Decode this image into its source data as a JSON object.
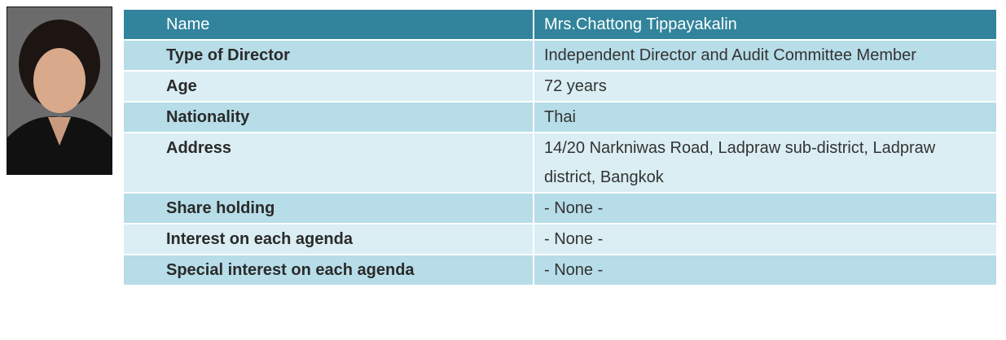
{
  "table": {
    "header": [
      "Name",
      "Mrs.Chattong Tippayakalin"
    ],
    "rows": [
      [
        "Type of Director",
        "Independent Director and Audit Committee Member"
      ],
      [
        "Age",
        "72 years"
      ],
      [
        "Nationality",
        "Thai"
      ],
      [
        "Address",
        "14/20 Narkniwas Road, Ladpraw sub-district, Ladpraw district, Bangkok"
      ],
      [
        "Share holding",
        "- None -"
      ],
      [
        "Interest on each agenda",
        "- None -"
      ],
      [
        "Special interest on each agenda",
        "- None -"
      ]
    ]
  }
}
